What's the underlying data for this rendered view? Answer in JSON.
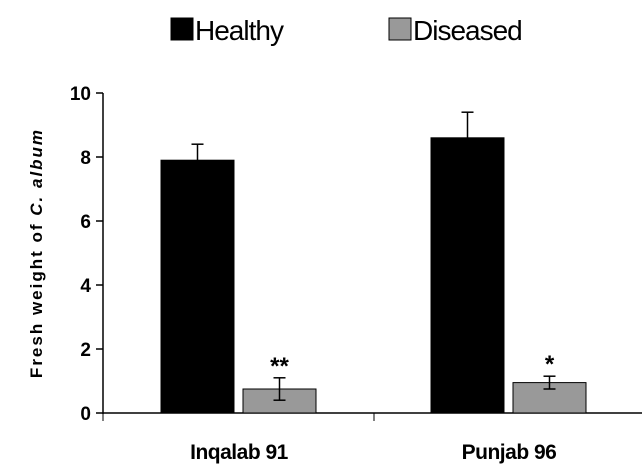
{
  "chart_data": {
    "type": "bar",
    "categories": [
      "Inqalab 91",
      "Punjab 96"
    ],
    "series": [
      {
        "name": "Healthy",
        "color": "#000000",
        "values": [
          7.9,
          8.6
        ],
        "errors": [
          0.5,
          0.8
        ],
        "annotations": [
          "",
          ""
        ]
      },
      {
        "name": "Diseased",
        "color": "#999999",
        "values": [
          0.75,
          0.95
        ],
        "errors": [
          0.35,
          0.2
        ],
        "annotations": [
          "**",
          "*"
        ]
      }
    ],
    "ylabel": {
      "prefix": "Fresh weight of ",
      "species": "C. album"
    },
    "ylim": [
      0,
      10
    ],
    "yticks": [
      "0",
      "2",
      "4",
      "6",
      "8",
      "10"
    ],
    "grid": false,
    "legend_position": "top"
  }
}
